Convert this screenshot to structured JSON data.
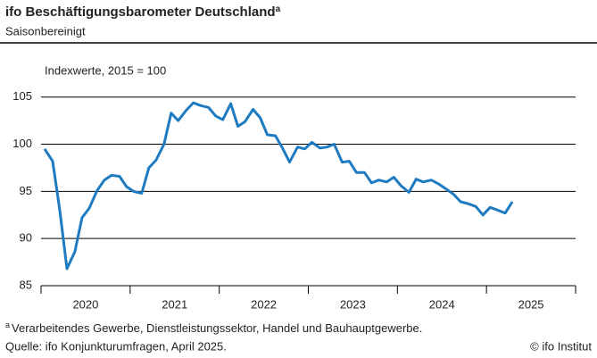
{
  "chart_data": {
    "type": "line",
    "title": "ifo Beschäftigungsbarometer Deutschland",
    "title_note": "a",
    "subtitle": "Saisonbereinigt",
    "y_label": "Indexwerte, 2015 = 100",
    "footnote": {
      "marker": "a",
      "text": "Verarbeitendes Gewerbe, Dienstleistungssektor, Handel und Bauhauptgewerbe."
    },
    "source": "Quelle: ifo Konjunkturumfragen, April 2025.",
    "copyright": "© ifo Institut",
    "x": [
      2020.04,
      2020.13,
      2020.21,
      2020.29,
      2020.38,
      2020.46,
      2020.54,
      2020.63,
      2020.71,
      2020.79,
      2020.88,
      2020.96,
      2021.04,
      2021.13,
      2021.21,
      2021.29,
      2021.38,
      2021.46,
      2021.54,
      2021.63,
      2021.71,
      2021.79,
      2021.88,
      2021.96,
      2022.04,
      2022.13,
      2022.21,
      2022.29,
      2022.38,
      2022.46,
      2022.54,
      2022.63,
      2022.71,
      2022.79,
      2022.88,
      2022.96,
      2023.04,
      2023.13,
      2023.21,
      2023.29,
      2023.38,
      2023.46,
      2023.54,
      2023.63,
      2023.71,
      2023.79,
      2023.88,
      2023.96,
      2024.04,
      2024.13,
      2024.21,
      2024.29,
      2024.38,
      2024.46,
      2024.54,
      2024.63,
      2024.71,
      2024.79,
      2024.88,
      2024.96,
      2025.04,
      2025.13,
      2025.21,
      2025.29
    ],
    "series": [
      {
        "color": "#1f7bc1",
        "values": [
          99.5,
          98.2,
          93.0,
          86.8,
          88.6,
          92.2,
          93.2,
          95.1,
          96.2,
          96.7,
          96.6,
          95.5,
          95.0,
          94.8,
          97.5,
          98.3,
          100.0,
          103.3,
          102.5,
          103.6,
          104.4,
          104.1,
          103.9,
          103.0,
          102.6,
          104.3,
          101.9,
          102.4,
          103.7,
          102.8,
          101.0,
          100.9,
          99.6,
          98.1,
          99.7,
          99.5,
          100.2,
          99.6,
          99.7,
          100.0,
          98.1,
          98.2,
          97.0,
          97.0,
          95.9,
          96.2,
          96.0,
          96.5,
          95.6,
          94.9,
          96.3,
          96.0,
          96.2,
          95.8,
          95.3,
          94.7,
          93.9,
          93.7,
          93.4,
          92.5,
          93.3,
          93.0,
          92.7,
          93.9
        ]
      }
    ],
    "xlim": [
      2020,
      2026
    ],
    "xticks": [
      {
        "value": 2020.5,
        "label": "2020"
      },
      {
        "value": 2021.5,
        "label": "2021"
      },
      {
        "value": 2022.5,
        "label": "2022"
      },
      {
        "value": 2023.5,
        "label": "2023"
      },
      {
        "value": 2024.5,
        "label": "2024"
      },
      {
        "value": 2025.5,
        "label": "2025"
      }
    ],
    "ylim": [
      85,
      106.3
    ],
    "yticks": [
      85,
      90,
      95,
      100,
      105
    ],
    "grid": true
  }
}
